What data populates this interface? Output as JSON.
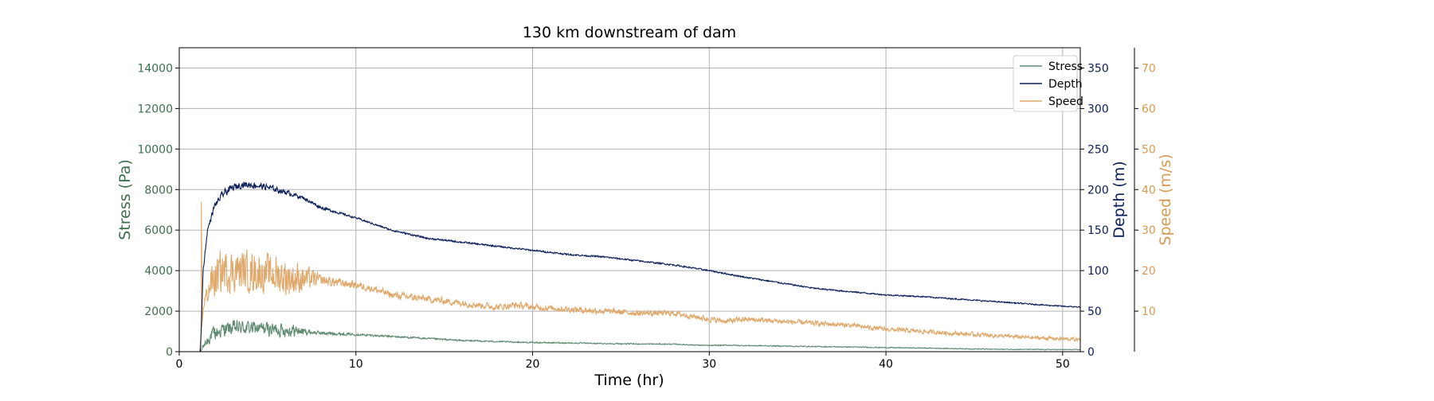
{
  "chart_data": {
    "type": "line",
    "title": "130 km downstream of dam",
    "xlabel": "Time (hr)",
    "xlim": [
      0,
      51
    ],
    "x_ticks": [
      0,
      10,
      20,
      30,
      40,
      50
    ],
    "grid": true,
    "legend_position": "top-right",
    "axes": {
      "stress": {
        "label": "Stress (Pa)",
        "lim": [
          0,
          15000
        ],
        "ticks": [
          0,
          2000,
          4000,
          6000,
          8000,
          10000,
          12000,
          14000
        ],
        "side": "left",
        "color": "#3c6e4e"
      },
      "depth": {
        "label": "Depth (m)",
        "lim": [
          0,
          375
        ],
        "ticks": [
          0,
          50,
          100,
          150,
          200,
          250,
          300,
          350
        ],
        "side": "right",
        "color": "#0a1e5a"
      },
      "speed": {
        "label": "Speed (m/s)",
        "lim": [
          0,
          75
        ],
        "ticks": [
          10,
          20,
          30,
          40,
          50,
          60,
          70
        ],
        "side": "right-outer",
        "color": "#d99a52"
      }
    },
    "series": [
      {
        "name": "Stress",
        "axis": "stress",
        "color": "#5f8a70",
        "noise": [
          [
            1.3,
            250
          ],
          [
            2.0,
            500
          ],
          [
            6.5,
            420
          ],
          [
            7.5,
            130
          ],
          [
            10,
            70
          ],
          [
            20,
            40
          ],
          [
            51,
            25
          ]
        ],
        "x": [
          0,
          1.2,
          1.4,
          1.8,
          2.5,
          3.5,
          4.5,
          5.5,
          6.5,
          7.5,
          8.5,
          10,
          12,
          14,
          16,
          18,
          20,
          22,
          24,
          26,
          28,
          30,
          31,
          32,
          34,
          36,
          38,
          40,
          42,
          44,
          46,
          48,
          51
        ],
        "y": [
          0,
          0,
          300,
          800,
          1100,
          1200,
          1150,
          1100,
          1050,
          950,
          900,
          850,
          750,
          650,
          550,
          500,
          450,
          430,
          400,
          380,
          370,
          300,
          320,
          300,
          280,
          250,
          230,
          200,
          180,
          150,
          120,
          110,
          100
        ]
      },
      {
        "name": "Depth",
        "axis": "depth",
        "color": "#0a1e5a",
        "noise": [
          [
            1.3,
            3
          ],
          [
            2.5,
            6
          ],
          [
            5,
            5
          ],
          [
            7,
            3
          ],
          [
            10,
            1.5
          ],
          [
            51,
            1
          ]
        ],
        "x": [
          0,
          1.2,
          1.35,
          1.6,
          2.0,
          2.5,
          3.0,
          3.5,
          4.0,
          5.0,
          6.0,
          7.0,
          8.0,
          10,
          12,
          14,
          16,
          18,
          20,
          22,
          24,
          26,
          28,
          30,
          32,
          34,
          36,
          38,
          40,
          42,
          44,
          46,
          48,
          50,
          51
        ],
        "y": [
          0,
          0,
          100,
          150,
          180,
          195,
          202,
          206,
          206,
          203,
          197,
          190,
          178,
          165,
          150,
          140,
          135,
          130,
          125,
          120,
          117,
          112,
          107,
          100,
          92,
          85,
          78,
          74,
          70,
          68,
          65,
          62,
          59,
          56,
          55
        ]
      },
      {
        "name": "Speed",
        "axis": "speed",
        "color": "#e0a86a",
        "noise": [
          [
            1.4,
            2
          ],
          [
            2.0,
            7
          ],
          [
            6.5,
            6
          ],
          [
            8,
            1.8
          ],
          [
            10,
            1.2
          ],
          [
            51,
            0.6
          ]
        ],
        "spike": {
          "x": 1.25,
          "y": 37
        },
        "x": [
          0,
          1.15,
          1.4,
          1.8,
          2.5,
          3.5,
          4.5,
          5.5,
          6.5,
          7.5,
          9,
          10,
          11,
          12,
          14,
          16,
          18,
          19,
          20,
          22,
          24,
          26,
          28,
          30,
          31,
          32,
          34,
          36,
          38,
          40,
          42,
          44,
          46,
          48,
          51
        ],
        "y": [
          0,
          0,
          12,
          17,
          20,
          20,
          19.5,
          19,
          18,
          18,
          17,
          16.5,
          15.5,
          14,
          13,
          12,
          11,
          11.5,
          11,
          10.5,
          10,
          9.5,
          9.5,
          8,
          7.5,
          8,
          7.5,
          7,
          6.5,
          5.5,
          5,
          4.5,
          4,
          3.5,
          3
        ]
      }
    ]
  }
}
